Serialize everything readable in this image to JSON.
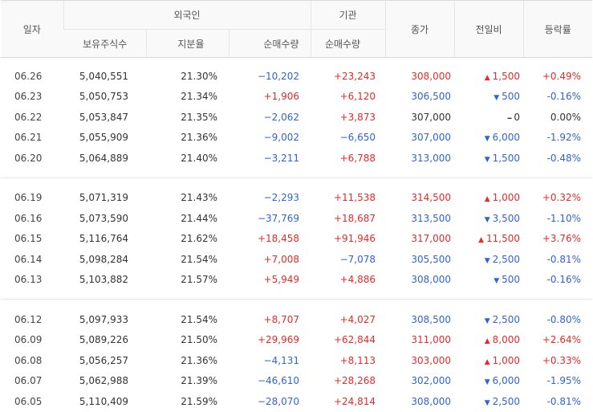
{
  "header": {
    "date": "일자",
    "foreign": "외국인",
    "institution": "기관",
    "close": "종가",
    "change": "전일비",
    "rate": "등락률",
    "holdings": "보유주식수",
    "share": "지분율",
    "foreign_net": "순매수량",
    "inst_net": "순매수량"
  },
  "groups": [
    [
      {
        "date": "06.26",
        "holdings": "5,040,551",
        "share": "21.30%",
        "fnet": "−10,202",
        "fdir": "down",
        "inet": "+23,243",
        "idir": "up",
        "close": "308,000",
        "cdir": "up",
        "chg": "1,500",
        "chgdir": "up",
        "rate": "+0.49%",
        "rdir": "up"
      },
      {
        "date": "06.23",
        "holdings": "5,050,753",
        "share": "21.34%",
        "fnet": "+1,906",
        "fdir": "up",
        "inet": "+6,120",
        "idir": "up",
        "close": "306,500",
        "cdir": "down",
        "chg": "500",
        "chgdir": "down",
        "rate": "-0.16%",
        "rdir": "down"
      },
      {
        "date": "06.22",
        "holdings": "5,053,847",
        "share": "21.35%",
        "fnet": "−2,062",
        "fdir": "down",
        "inet": "+3,873",
        "idir": "up",
        "close": "307,000",
        "cdir": "flat",
        "chg": "0",
        "chgdir": "flat",
        "rate": "0.00%",
        "rdir": "flat"
      },
      {
        "date": "06.21",
        "holdings": "5,055,909",
        "share": "21.36%",
        "fnet": "−9,002",
        "fdir": "down",
        "inet": "−6,650",
        "idir": "down",
        "close": "307,000",
        "cdir": "down",
        "chg": "6,000",
        "chgdir": "down",
        "rate": "-1.92%",
        "rdir": "down"
      },
      {
        "date": "06.20",
        "holdings": "5,064,889",
        "share": "21.40%",
        "fnet": "−3,211",
        "fdir": "down",
        "inet": "+6,788",
        "idir": "up",
        "close": "313,000",
        "cdir": "down",
        "chg": "1,500",
        "chgdir": "down",
        "rate": "-0.48%",
        "rdir": "down"
      }
    ],
    [
      {
        "date": "06.19",
        "holdings": "5,071,319",
        "share": "21.43%",
        "fnet": "−2,293",
        "fdir": "down",
        "inet": "+11,538",
        "idir": "up",
        "close": "314,500",
        "cdir": "up",
        "chg": "1,000",
        "chgdir": "up",
        "rate": "+0.32%",
        "rdir": "up"
      },
      {
        "date": "06.16",
        "holdings": "5,073,590",
        "share": "21.44%",
        "fnet": "−37,769",
        "fdir": "down",
        "inet": "+18,687",
        "idir": "up",
        "close": "313,500",
        "cdir": "down",
        "chg": "3,500",
        "chgdir": "down",
        "rate": "-1.10%",
        "rdir": "down"
      },
      {
        "date": "06.15",
        "holdings": "5,116,764",
        "share": "21.62%",
        "fnet": "+18,458",
        "fdir": "up",
        "inet": "+91,946",
        "idir": "up",
        "close": "317,000",
        "cdir": "up",
        "chg": "11,500",
        "chgdir": "up",
        "rate": "+3.76%",
        "rdir": "up"
      },
      {
        "date": "06.14",
        "holdings": "5,098,284",
        "share": "21.54%",
        "fnet": "+7,008",
        "fdir": "up",
        "inet": "−7,078",
        "idir": "down",
        "close": "305,500",
        "cdir": "down",
        "chg": "2,500",
        "chgdir": "down",
        "rate": "-0.81%",
        "rdir": "down"
      },
      {
        "date": "06.13",
        "holdings": "5,103,882",
        "share": "21.57%",
        "fnet": "+5,949",
        "fdir": "up",
        "inet": "+4,886",
        "idir": "up",
        "close": "308,000",
        "cdir": "down",
        "chg": "500",
        "chgdir": "down",
        "rate": "-0.16%",
        "rdir": "down"
      }
    ],
    [
      {
        "date": "06.12",
        "holdings": "5,097,933",
        "share": "21.54%",
        "fnet": "+8,707",
        "fdir": "up",
        "inet": "+4,027",
        "idir": "up",
        "close": "308,500",
        "cdir": "down",
        "chg": "2,500",
        "chgdir": "down",
        "rate": "-0.80%",
        "rdir": "down"
      },
      {
        "date": "06.09",
        "holdings": "5,089,226",
        "share": "21.50%",
        "fnet": "+29,969",
        "fdir": "up",
        "inet": "+62,844",
        "idir": "up",
        "close": "311,000",
        "cdir": "up",
        "chg": "8,000",
        "chgdir": "up",
        "rate": "+2.64%",
        "rdir": "up"
      },
      {
        "date": "06.08",
        "holdings": "5,056,257",
        "share": "21.36%",
        "fnet": "−4,131",
        "fdir": "down",
        "inet": "+8,113",
        "idir": "up",
        "close": "303,000",
        "cdir": "up",
        "chg": "1,000",
        "chgdir": "up",
        "rate": "+0.33%",
        "rdir": "up"
      },
      {
        "date": "06.07",
        "holdings": "5,062,988",
        "share": "21.39%",
        "fnet": "−46,610",
        "fdir": "down",
        "inet": "+28,268",
        "idir": "up",
        "close": "302,000",
        "cdir": "down",
        "chg": "6,000",
        "chgdir": "down",
        "rate": "-1.95%",
        "rdir": "down"
      },
      {
        "date": "06.05",
        "holdings": "5,110,409",
        "share": "21.59%",
        "fnet": "−28,070",
        "fdir": "down",
        "inet": "+24,814",
        "idir": "up",
        "close": "308,000",
        "cdir": "down",
        "chg": "2,500",
        "chgdir": "down",
        "rate": "-0.81%",
        "rdir": "down"
      }
    ]
  ],
  "colors": {
    "up": "#e52b2b",
    "down": "#3064d0",
    "flat": "#333333"
  }
}
